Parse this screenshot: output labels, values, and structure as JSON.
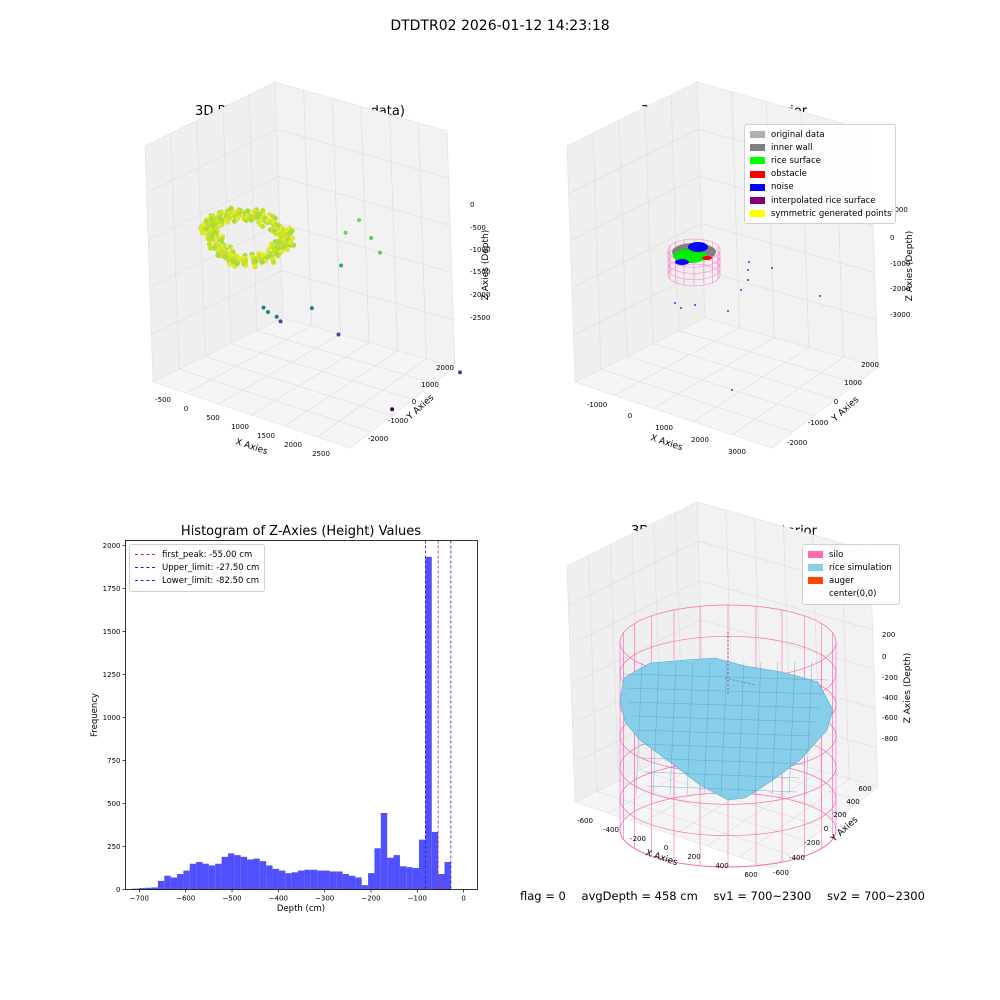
{
  "figure_title": "DTDTR02 2026-01-12 14:23:18",
  "footer": {
    "flag": "flag = 0",
    "avg_depth": "avgDepth = 458 cm",
    "sv1": "sv1 = 700~2300",
    "sv2": "sv2 = 700~2300"
  },
  "colors": {
    "hist_bar": "#5050ff",
    "first_peak": "#e02020",
    "limit": "#2020c0",
    "silo": "#ff69b4",
    "rice_sim": "#87ceeb",
    "auger": "#ff4500",
    "pane": "#f2f2f2"
  },
  "chart_data": [
    {
      "type": "scatter",
      "title": "3D Plot of Silo Interior(row data)",
      "xlabel": "X Axies",
      "ylabel": "Y Axies",
      "zlabel": "Z Axies (Depth)",
      "x_ticks": [
        "-500",
        "0",
        "500",
        "1000",
        "1500",
        "2000",
        "2500"
      ],
      "y_ticks": [
        "-2000",
        "-1000",
        "0",
        "1000",
        "2000"
      ],
      "z_ticks": [
        "0",
        "-500",
        "-1000",
        "-1500",
        "-2000",
        "-2500"
      ],
      "colormap": "viridis",
      "outliers": [
        {
          "x": 1000,
          "y": 1800,
          "z": -1100
        },
        {
          "x": 1150,
          "y": 1900,
          "z": -1300
        },
        {
          "x": 950,
          "y": 1400,
          "z": -1200
        },
        {
          "x": 1200,
          "y": 2100,
          "z": -1500
        },
        {
          "x": 900,
          "y": 1300,
          "z": -1600
        },
        {
          "x": 300,
          "y": -300,
          "z": -2000
        },
        {
          "x": 350,
          "y": -250,
          "z": -2050
        },
        {
          "x": 450,
          "y": -150,
          "z": -2100
        },
        {
          "x": 500,
          "y": -120,
          "z": -2150
        },
        {
          "x": 800,
          "y": 400,
          "z": -2000
        },
        {
          "x": 1100,
          "y": 700,
          "z": -2300
        },
        {
          "x": 2600,
          "y": 1900,
          "z": -2600
        },
        {
          "x": 2500,
          "y": -400,
          "z": -2700
        }
      ]
    },
    {
      "type": "scatter",
      "title": "3D classify of Silo Interior",
      "xlabel": "X Axies",
      "ylabel": "Y Axies",
      "zlabel": "Z Axies (Depth)",
      "x_ticks": [
        "-1000",
        "0",
        "1000",
        "2000",
        "3000"
      ],
      "y_ticks": [
        "-2000",
        "-1000",
        "0",
        "1000",
        "2000"
      ],
      "z_ticks": [
        "1000",
        "0",
        "-1000",
        "-2000",
        "-3000"
      ],
      "legend": [
        {
          "label": "original data",
          "color": "#b0b0b0"
        },
        {
          "label": "inner wall",
          "color": "#808080"
        },
        {
          "label": "rice surface",
          "color": "#00ff00"
        },
        {
          "label": "obstacle",
          "color": "#ff0000"
        },
        {
          "label": "noise",
          "color": "#0000ff"
        },
        {
          "label": "interpolated rice surface",
          "color": "#800080"
        },
        {
          "label": "symmetric generated points",
          "color": "#ffff00"
        }
      ]
    },
    {
      "type": "bar",
      "title": "Histogram of Z-Axies (Height) Values",
      "xlabel": "Depth (cm)",
      "ylabel": "Frequency",
      "xlim": [
        -730,
        30
      ],
      "ylim": [
        0,
        2030
      ],
      "x_ticks": [
        -700,
        -600,
        -500,
        -400,
        -300,
        -200,
        -100,
        0
      ],
      "y_ticks": [
        0,
        250,
        500,
        750,
        1000,
        1250,
        1500,
        1750,
        2000
      ],
      "bin_width": 13.75,
      "bin_start": -715,
      "values": [
        5,
        8,
        10,
        12,
        50,
        80,
        70,
        90,
        110,
        150,
        160,
        150,
        140,
        150,
        190,
        210,
        200,
        190,
        175,
        180,
        165,
        140,
        120,
        110,
        95,
        100,
        110,
        115,
        115,
        110,
        110,
        105,
        105,
        90,
        80,
        70,
        25,
        95,
        240,
        445,
        185,
        200,
        135,
        130,
        125,
        290,
        1935,
        335,
        90,
        160
      ],
      "lines": [
        {
          "name": "first_peak: -55.00 cm",
          "x": -55.0,
          "color": "#e02020"
        },
        {
          "name": "Upper_limit: -27.50 cm",
          "x": -27.5,
          "color": "#2020c0"
        },
        {
          "name": "Lower_limit: -82.50 cm",
          "x": -82.5,
          "color": "#2020c0"
        }
      ]
    },
    {
      "type": "surface",
      "title": "3D simulation of Silo Interior",
      "xlabel": "X Axies",
      "ylabel": "Y Axies",
      "zlabel": "Z Axies (Depth)",
      "x_ticks": [
        "-600",
        "-400",
        "-200",
        "0",
        "200",
        "400",
        "600"
      ],
      "y_ticks": [
        "-600",
        "-400",
        "-200",
        "0",
        "200",
        "400",
        "600"
      ],
      "z_ticks": [
        "200",
        "0",
        "-200",
        "-400",
        "-600",
        "-800"
      ],
      "legend": [
        {
          "label": "silo",
          "color": "#ff69b4"
        },
        {
          "label": "rice simulation",
          "color": "#87ceeb"
        },
        {
          "label": "auger",
          "color": "#ff4500"
        },
        {
          "label": "center(0,0)",
          "color": ""
        }
      ]
    }
  ]
}
